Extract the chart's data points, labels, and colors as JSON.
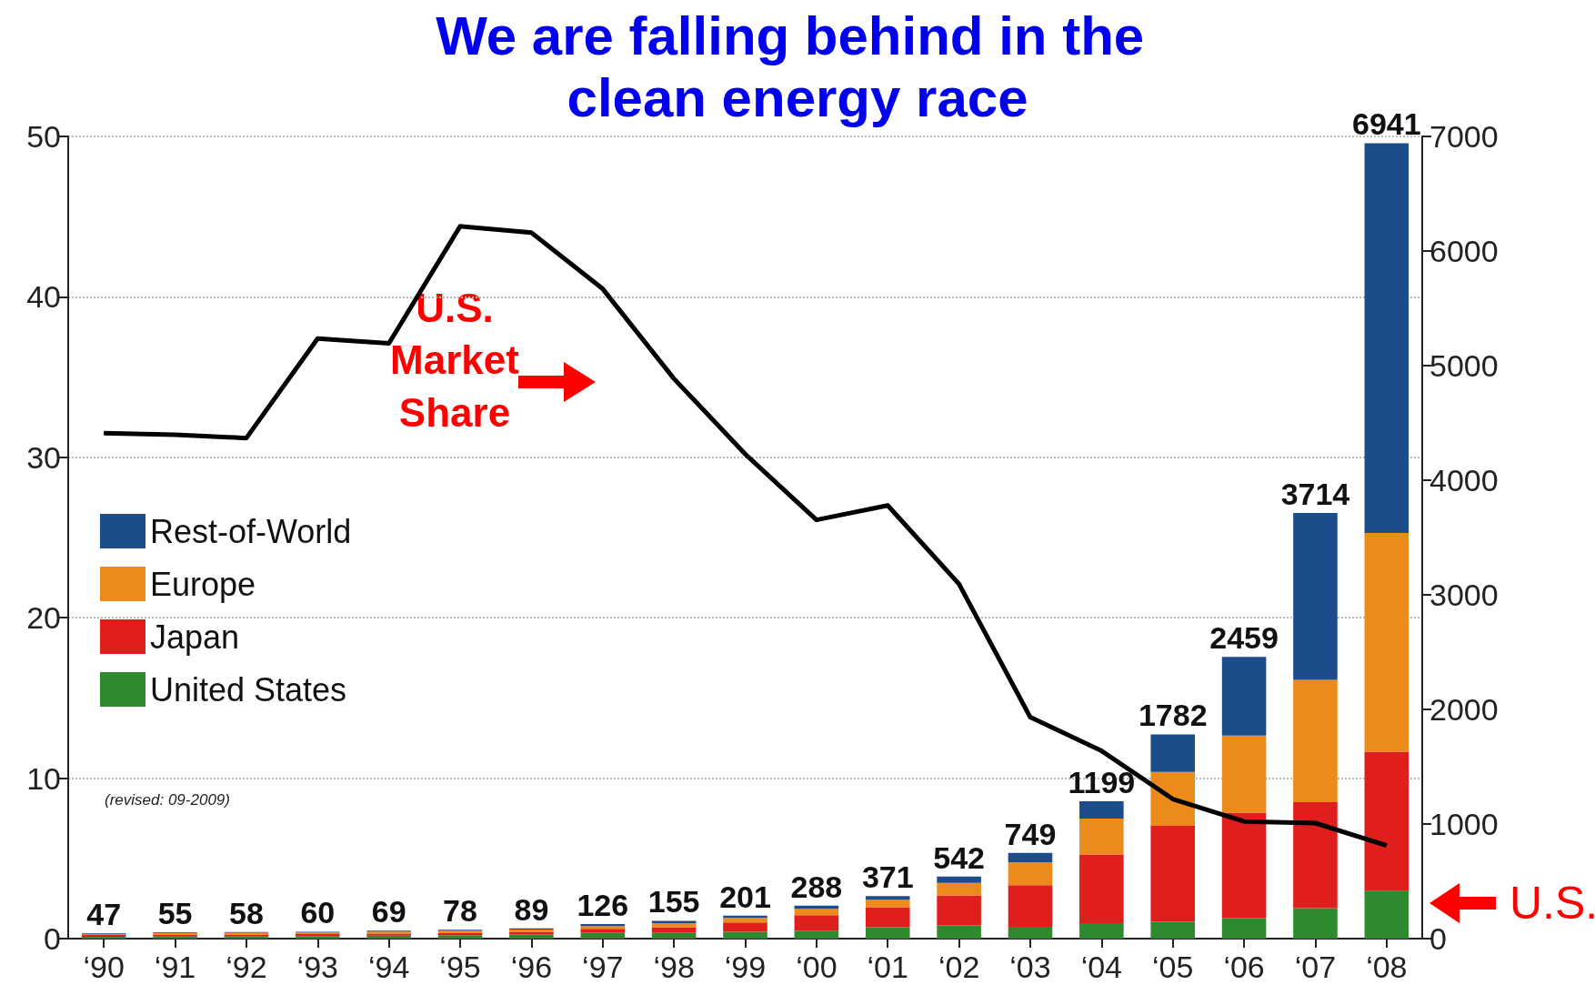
{
  "chart_data": {
    "type": "bar",
    "title": "We are falling behind in the clean energy race",
    "categories": [
      "‘90",
      "‘91",
      "‘92",
      "‘93",
      "‘94",
      "‘95",
      "‘96",
      "‘97",
      "‘98",
      "‘99",
      "‘00",
      "‘01",
      "‘02",
      "‘03",
      "‘04",
      "‘05",
      "‘06",
      "‘07",
      "‘08"
    ],
    "stacked": true,
    "series": [
      {
        "name": "United States",
        "color": "#2e8a2e",
        "axis": "y2",
        "values": [
          15,
          17,
          18,
          22,
          25,
          30,
          35,
          50,
          50,
          60,
          70,
          99,
          115,
          103,
          134,
          146,
          178,
          265,
          415
        ]
      },
      {
        "name": "Japan",
        "color": "#e01e1e",
        "axis": "y2",
        "values": [
          17,
          19,
          17,
          17,
          18,
          20,
          25,
          35,
          50,
          80,
          135,
          174,
          261,
          364,
          601,
          838,
          922,
          925,
          1215
        ]
      },
      {
        "name": "Europe",
        "color": "#ec8a1c",
        "axis": "y2",
        "values": [
          10,
          13,
          16,
          14,
          18,
          20,
          20,
          25,
          35,
          40,
          55,
          67,
          110,
          197,
          313,
          471,
          671,
          1067,
          1910
        ]
      },
      {
        "name": "Rest-of-World",
        "color": "#1d4c8a",
        "axis": "y2",
        "values": [
          5,
          6,
          7,
          7,
          8,
          8,
          9,
          16,
          20,
          21,
          28,
          31,
          56,
          85,
          151,
          327,
          688,
          1457,
          3401
        ]
      },
      {
        "type": "line",
        "color": "#000000",
        "axis": "y",
        "values": [
          31.5,
          31.4,
          31.2,
          37.4,
          37.1,
          44.4,
          44.0,
          40.5,
          34.9,
          30.2,
          26.1,
          27.0,
          22.1,
          13.8,
          11.7,
          8.7,
          7.3,
          7.2,
          5.8
        ]
      }
    ],
    "totals": [
      "47",
      "55",
      "58",
      "60",
      "69",
      "78",
      "89",
      "126",
      "155",
      "201",
      "288",
      "371",
      "542",
      "749",
      "1199",
      "1782",
      "2459",
      "3714",
      "6941"
    ],
    "ylim": [
      0,
      50
    ],
    "yticks": [
      0,
      10,
      20,
      30,
      40,
      50
    ],
    "y2lim": [
      0,
      7000
    ],
    "y2ticks": [
      0,
      1000,
      2000,
      3000,
      4000,
      5000,
      6000,
      7000
    ],
    "grid": "y",
    "legend": "left",
    "marker": "none",
    "line_style": "solid",
    "annotations": [
      "U.S. Market Share",
      "U.S.",
      "(revised: 09-2009)"
    ]
  }
}
